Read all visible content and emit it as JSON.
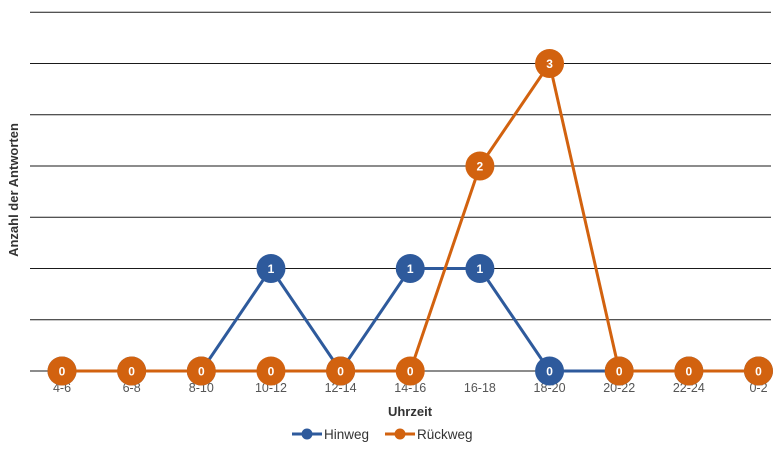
{
  "chart_data": {
    "type": "line",
    "xlabel": "Uhrzeit",
    "ylabel": "Anzahl der Antworten",
    "ylim": [
      0,
      3.5
    ],
    "grid": true,
    "legend_position": "bottom",
    "categories": [
      "4-6",
      "6-8",
      "8-10",
      "10-12",
      "12-14",
      "14-16",
      "16-18",
      "18-20",
      "20-22",
      "22-24",
      "0-2"
    ],
    "series": [
      {
        "name": "Hinweg",
        "color": "#2e5a9c",
        "values": [
          0,
          0,
          0,
          1,
          0,
          1,
          1,
          0,
          0,
          0,
          0
        ]
      },
      {
        "name": "Rückweg",
        "color": "#d2620f",
        "values": [
          0,
          0,
          0,
          0,
          0,
          0,
          2,
          3,
          0,
          0,
          0
        ]
      }
    ]
  }
}
